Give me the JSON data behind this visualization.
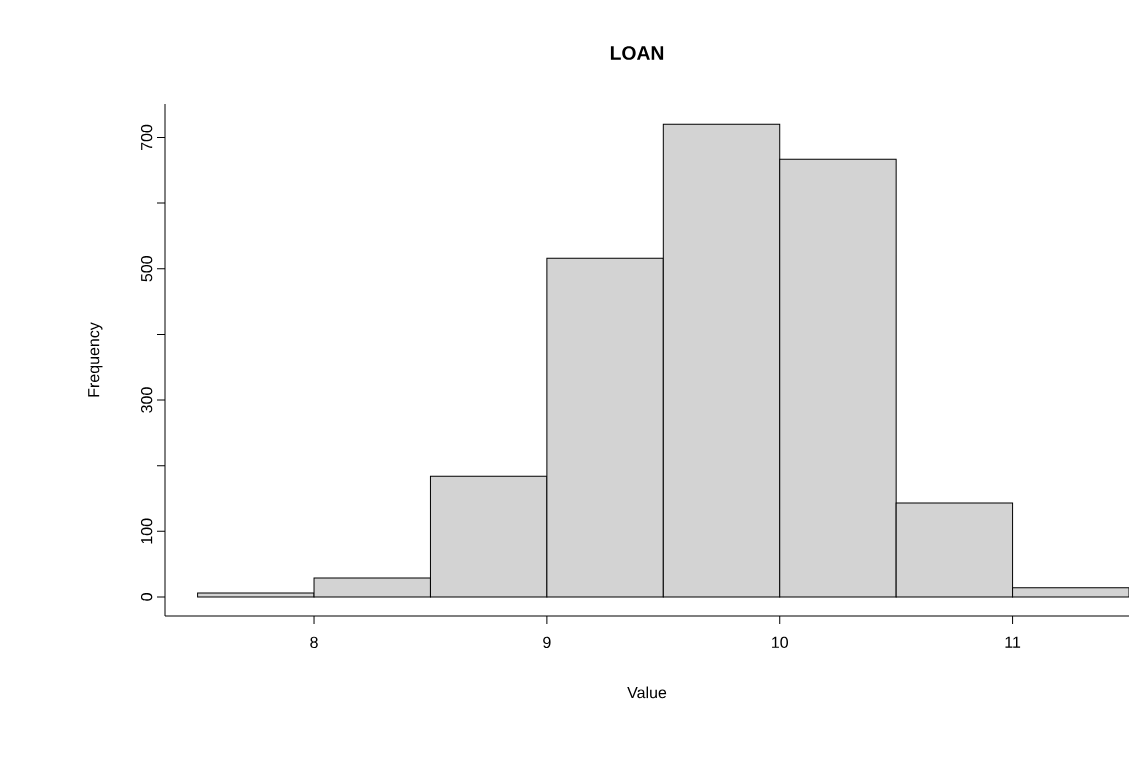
{
  "chart_data": {
    "type": "histogram",
    "title": "LOAN",
    "xlabel": "Value",
    "ylabel": "Frequency",
    "bins": [
      7.5,
      8,
      8.5,
      9,
      9.5,
      10,
      10.5,
      11,
      11.5
    ],
    "values": [
      6,
      29,
      184,
      516,
      720,
      667,
      143,
      14
    ],
    "color": "#d3d3d3",
    "xlim": [
      7.36,
      11.5
    ],
    "ylim": [
      -29,
      751
    ],
    "xticks": [
      8,
      9,
      10,
      11
    ],
    "yticks": [
      0,
      100,
      {
        "value": 200,
        "label": null
      },
      300,
      {
        "value": 400,
        "label": null
      },
      500,
      {
        "value": 600,
        "label": null
      },
      700
    ]
  }
}
